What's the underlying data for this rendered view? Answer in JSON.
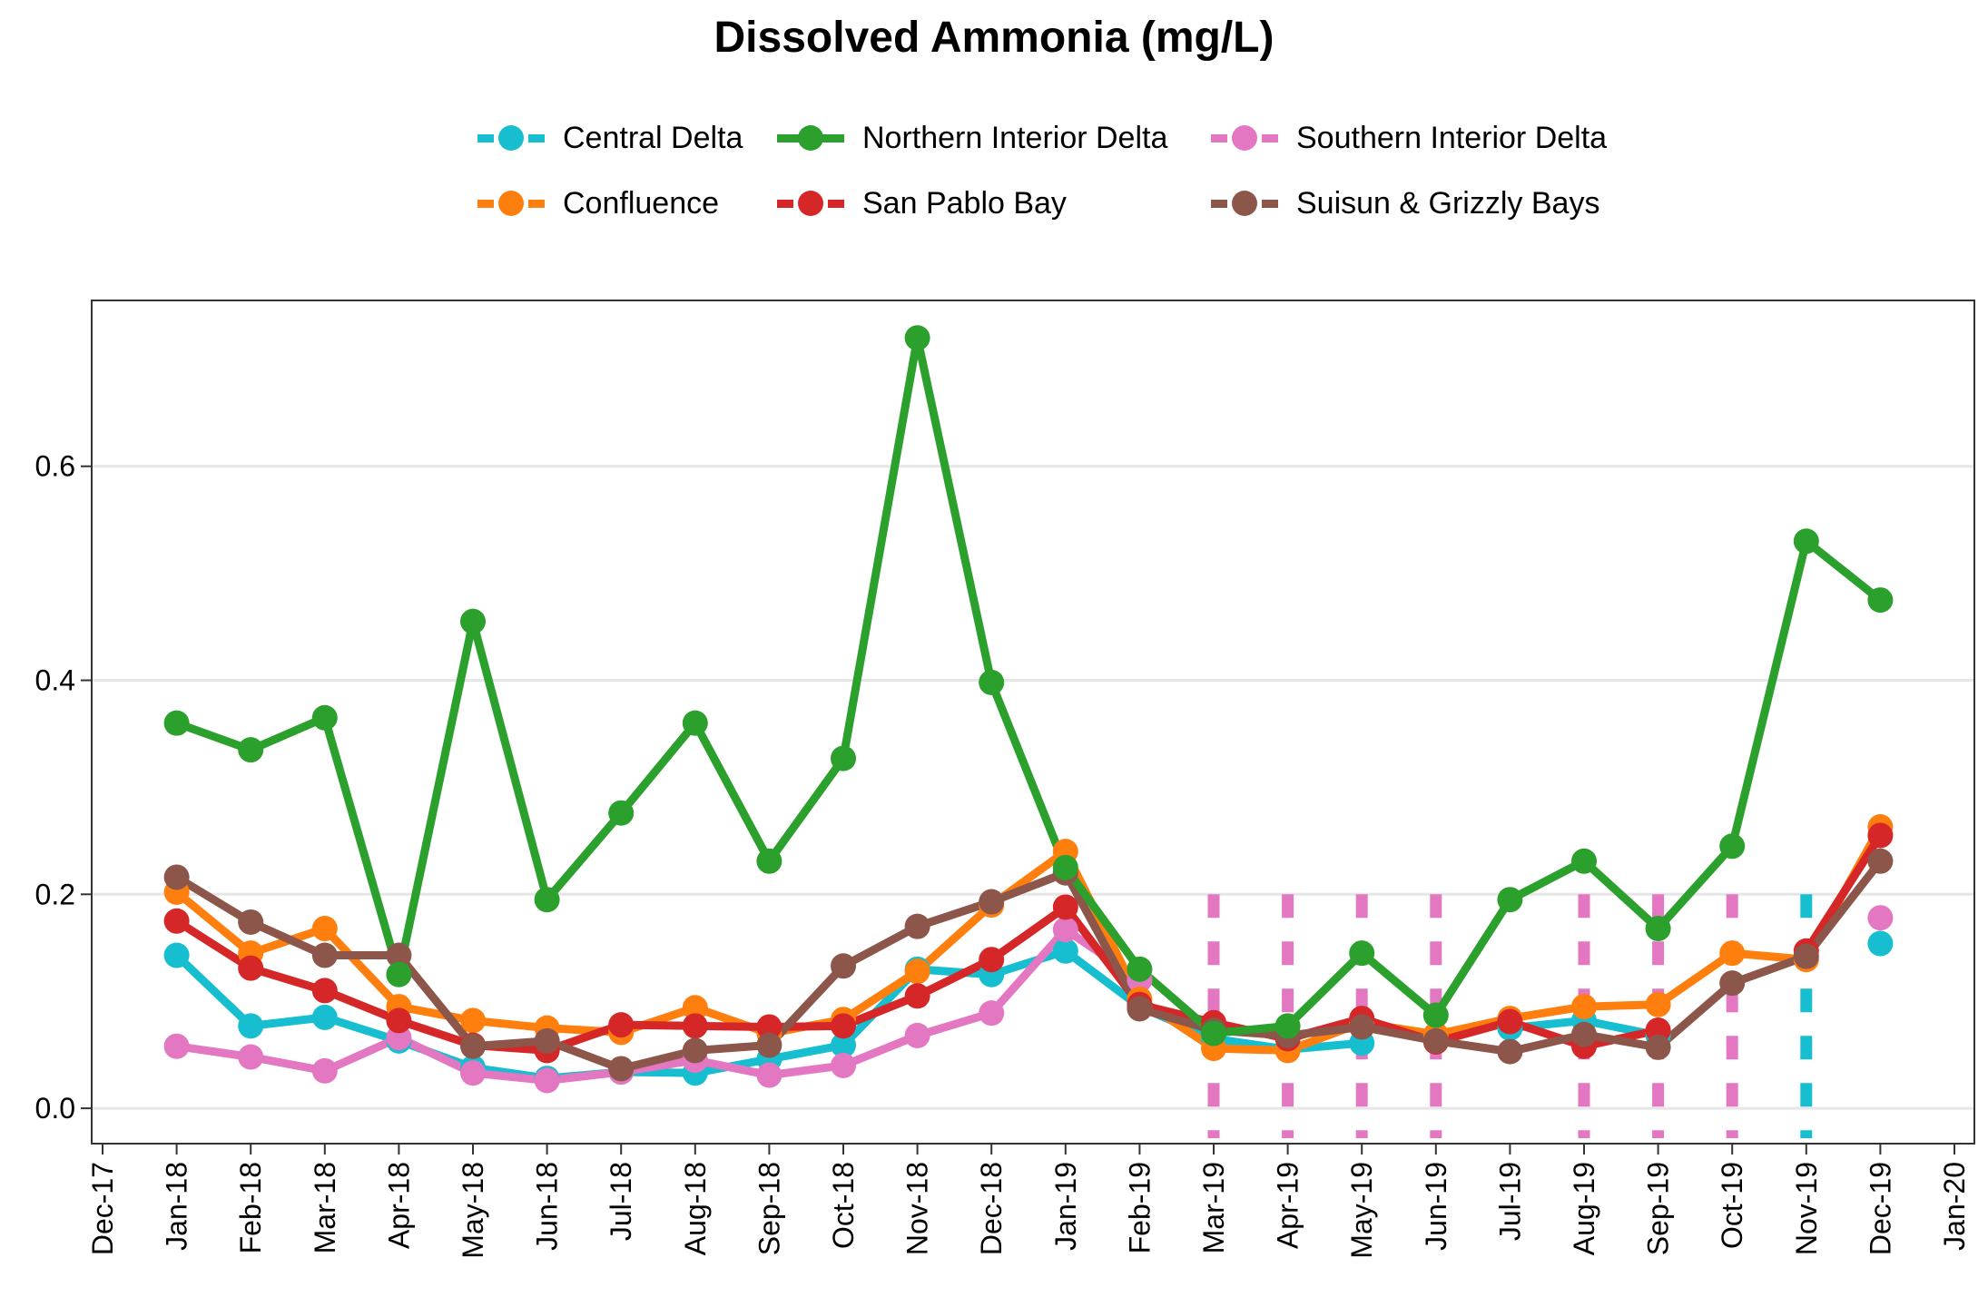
{
  "chart_data": {
    "type": "line",
    "title": "Dissolved Ammonia (mg/L)",
    "xlabel": "",
    "ylabel": "",
    "x_tick_labels": [
      "Dec-17",
      "Jan-18",
      "Feb-18",
      "Mar-18",
      "Apr-18",
      "May-18",
      "Jun-18",
      "Jul-18",
      "Aug-18",
      "Sep-18",
      "Oct-18",
      "Nov-18",
      "Dec-18",
      "Jan-19",
      "Feb-19",
      "Mar-19",
      "Apr-19",
      "May-19",
      "Jun-19",
      "Jul-19",
      "Aug-19",
      "Sep-19",
      "Oct-19",
      "Nov-19",
      "Dec-19",
      "Jan-20"
    ],
    "categories": [
      "Jan-18",
      "Feb-18",
      "Mar-18",
      "Apr-18",
      "May-18",
      "Jun-18",
      "Jul-18",
      "Aug-18",
      "Sep-18",
      "Oct-18",
      "Nov-18",
      "Dec-18",
      "Jan-19",
      "Feb-19",
      "Mar-19",
      "Apr-19",
      "May-19",
      "Jun-19",
      "Jul-19",
      "Aug-19",
      "Sep-19",
      "Oct-19",
      "Nov-19",
      "Dec-19"
    ],
    "y_ticks": [
      "0.0",
      "0.2",
      "0.4",
      "0.6"
    ],
    "ylim": [
      -0.033,
      0.755
    ],
    "grid": "horizontal major lines only",
    "legend_position": "top",
    "series": [
      {
        "name": "Central Delta",
        "color": "#17BECF",
        "values": [
          0.143,
          0.077,
          0.085,
          0.063,
          0.038,
          0.028,
          0.034,
          0.033,
          0.046,
          0.059,
          0.13,
          0.125,
          0.147,
          0.095,
          0.065,
          0.055,
          0.061,
          null,
          0.075,
          0.082,
          0.068,
          null,
          null,
          0.154
        ]
      },
      {
        "name": "Confluence",
        "color": "#FF7F0E",
        "values": [
          0.202,
          0.145,
          0.168,
          0.095,
          0.082,
          0.075,
          0.071,
          0.094,
          0.07,
          0.083,
          0.128,
          0.19,
          0.24,
          0.102,
          0.056,
          0.054,
          0.08,
          0.069,
          0.084,
          0.095,
          0.097,
          0.145,
          0.139,
          0.263
        ]
      },
      {
        "name": "Northern Interior Delta",
        "color": "#2CA02C",
        "values": [
          0.36,
          0.335,
          0.365,
          0.125,
          0.455,
          0.195,
          0.276,
          0.36,
          0.231,
          0.327,
          0.72,
          0.398,
          0.225,
          0.13,
          0.07,
          0.077,
          0.145,
          0.087,
          0.195,
          0.231,
          0.168,
          0.245,
          0.53,
          0.475
        ]
      },
      {
        "name": "San Pablo Bay",
        "color": "#D62728",
        "values": [
          0.175,
          0.131,
          0.11,
          0.082,
          0.059,
          0.054,
          0.078,
          0.077,
          0.076,
          0.077,
          0.105,
          0.139,
          0.188,
          0.097,
          0.08,
          0.065,
          0.084,
          0.062,
          0.081,
          0.058,
          0.073,
          null,
          0.147,
          0.255
        ]
      },
      {
        "name": "Southern Interior Delta",
        "color": "#E377C2",
        "values": [
          0.058,
          0.048,
          0.035,
          0.066,
          0.033,
          0.026,
          0.034,
          0.045,
          0.031,
          0.04,
          0.068,
          0.089,
          0.167,
          0.12,
          null,
          null,
          null,
          null,
          null,
          null,
          null,
          null,
          null,
          0.178
        ]
      },
      {
        "name": "Suisun & Grizzly Bays",
        "color": "#8C564B",
        "values": [
          0.216,
          0.174,
          0.143,
          0.143,
          0.058,
          0.063,
          0.037,
          0.054,
          0.059,
          0.133,
          0.17,
          0.193,
          0.22,
          0.093,
          0.073,
          0.068,
          0.076,
          0.063,
          0.053,
          0.069,
          0.057,
          0.117,
          0.142,
          0.231
        ]
      }
    ],
    "below_detection_markers": [
      {
        "series": "Southern Interior Delta",
        "categories": [
          "Mar-19",
          "Apr-19",
          "May-19",
          "Jun-19",
          "Aug-19",
          "Sep-19",
          "Oct-19"
        ]
      },
      {
        "series": "Central Delta",
        "categories": [
          "Nov-19"
        ]
      }
    ]
  },
  "legend_rows": [
    [
      "Central Delta",
      "Northern Interior Delta",
      "Southern Interior Delta"
    ],
    [
      "Confluence",
      "San Pablo Bay",
      "Suisun & Grizzly Bays"
    ]
  ]
}
